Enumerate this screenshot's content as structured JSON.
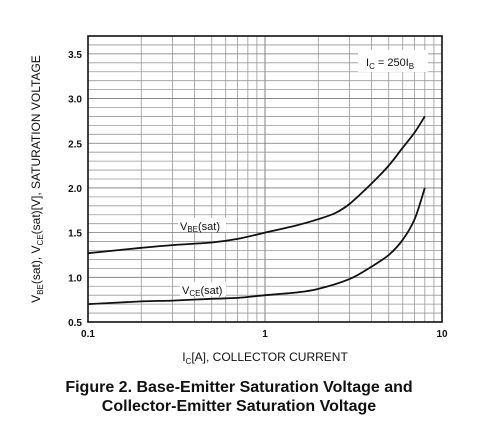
{
  "chart_data": {
    "type": "line",
    "title": "",
    "x_scale": "log",
    "xlim": [
      0.1,
      10
    ],
    "ylim": [
      0.5,
      3.7
    ],
    "x_ticks": [
      "0.1",
      "1",
      "10"
    ],
    "y_ticks": [
      "0.5",
      "1.0",
      "1.5",
      "2.0",
      "2.5",
      "3.0",
      "3.5"
    ],
    "grid": true,
    "xlabel": {
      "main": "I",
      "sub": "C",
      "rest": "[A], COLLECTOR CURRENT"
    },
    "ylabel": {
      "p1": "V",
      "s1": "BE",
      "p2": "(sat), V",
      "s2": "CE",
      "p3": "(sat)[V], SATURATION VOLTAGE"
    },
    "condition": {
      "p1": "I",
      "s1": "C",
      "p2": " = 250I",
      "s2": "B"
    },
    "series": [
      {
        "name": "VBE(sat)",
        "label": {
          "main": "V",
          "sub": "BE",
          "rest": "(sat)"
        },
        "x": [
          0.1,
          0.2,
          0.3,
          0.5,
          0.7,
          1.0,
          1.5,
          2.0,
          2.5,
          3.0,
          4.0,
          5.0,
          6.0,
          7.0,
          8.0
        ],
        "y": [
          1.27,
          1.33,
          1.36,
          1.39,
          1.43,
          1.5,
          1.58,
          1.65,
          1.72,
          1.82,
          2.05,
          2.25,
          2.45,
          2.62,
          2.8
        ]
      },
      {
        "name": "VCE(sat)",
        "label": {
          "main": "V",
          "sub": "CE",
          "rest": "(sat)"
        },
        "x": [
          0.1,
          0.2,
          0.3,
          0.5,
          0.7,
          1.0,
          1.5,
          2.0,
          3.0,
          4.0,
          5.0,
          6.0,
          7.0,
          8.0
        ],
        "y": [
          0.7,
          0.73,
          0.74,
          0.76,
          0.77,
          0.8,
          0.83,
          0.87,
          0.98,
          1.12,
          1.25,
          1.42,
          1.65,
          2.0
        ]
      }
    ]
  },
  "caption": {
    "line1": "Figure 2. Base-Emitter Saturation Voltage and",
    "line2": "Collector-Emitter Saturation Voltage"
  }
}
